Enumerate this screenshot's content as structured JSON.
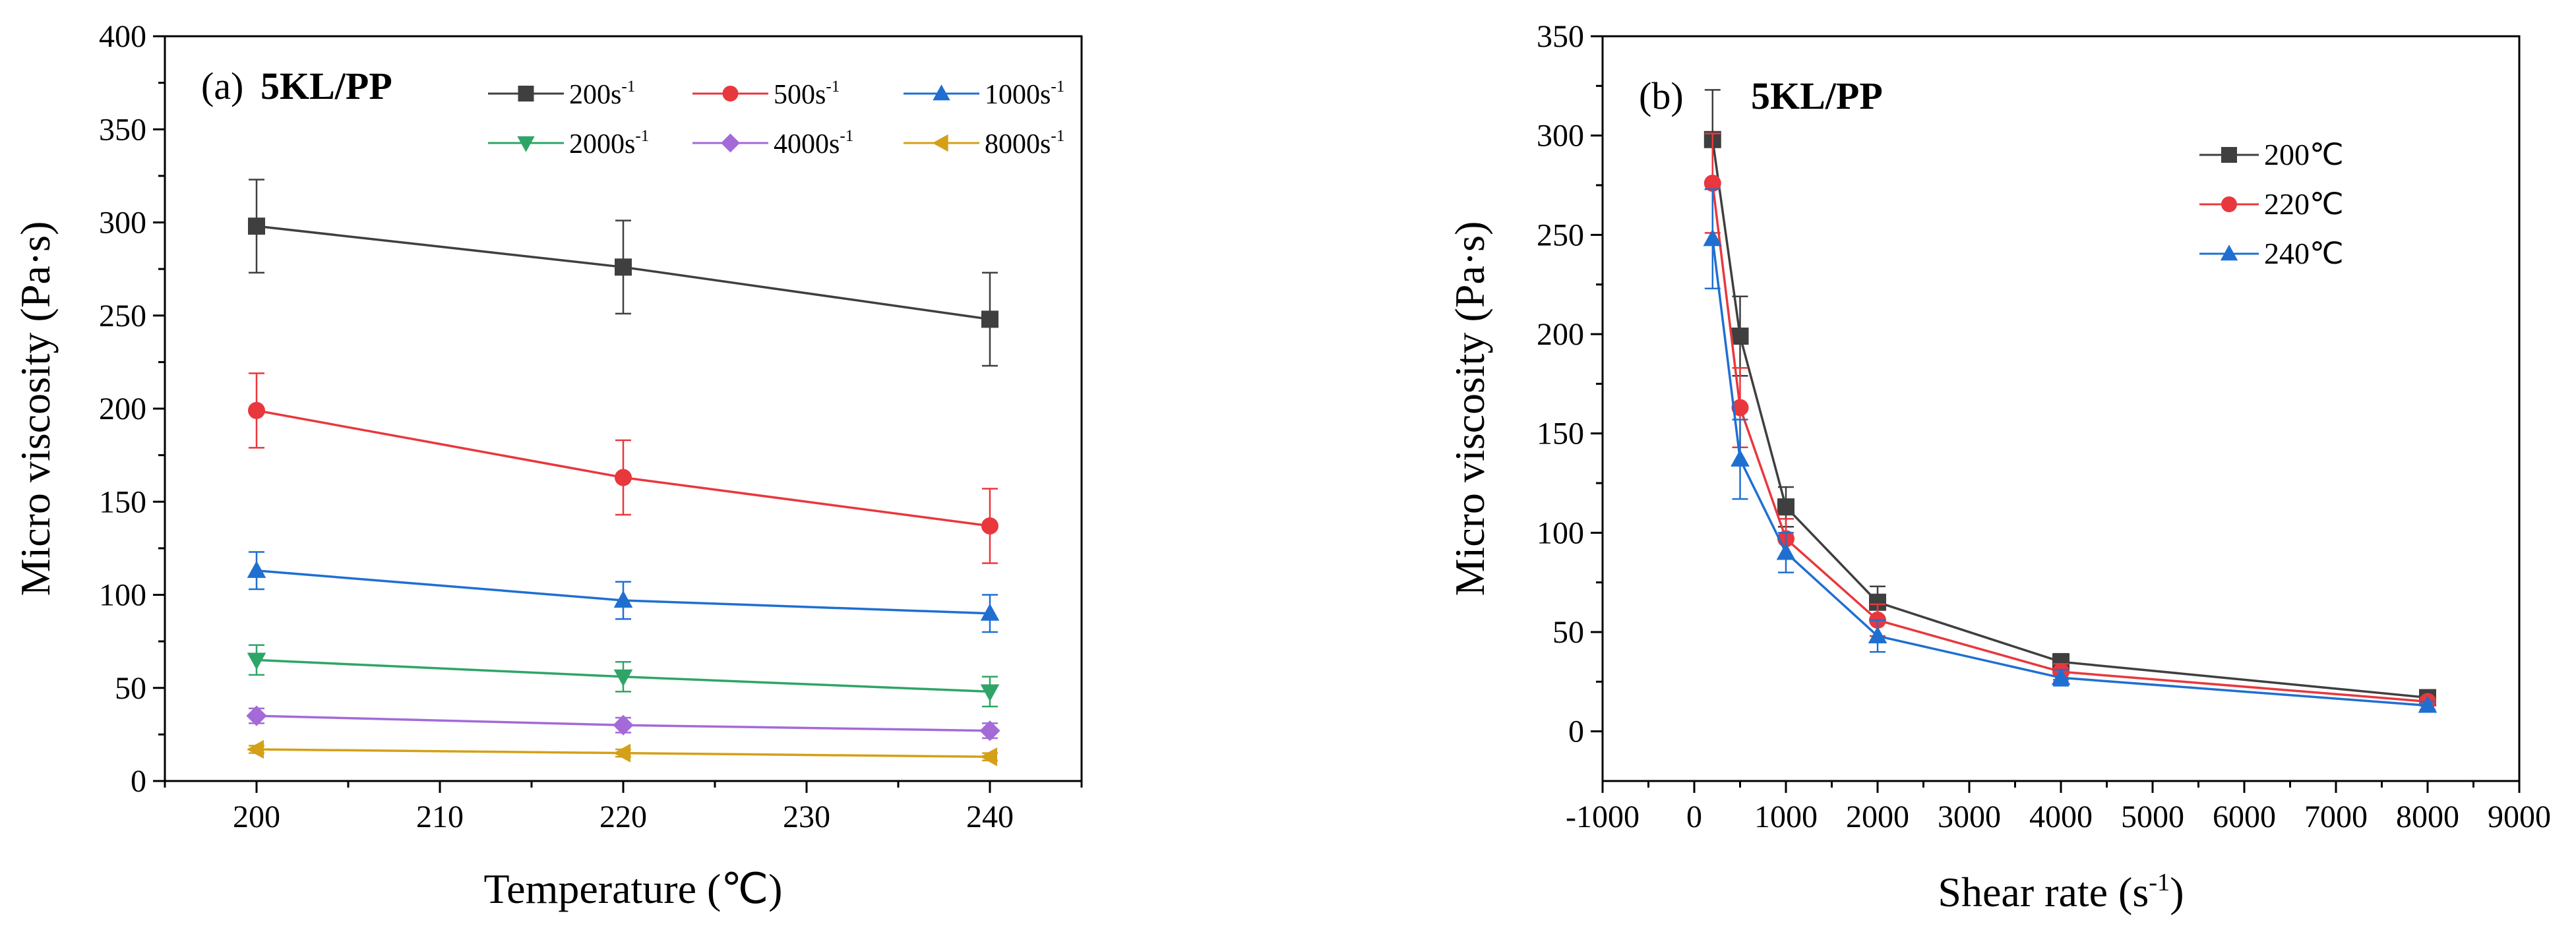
{
  "chart_data": [
    {
      "panel": "(a)",
      "type": "line",
      "title": "5KL/PP",
      "xlabel": "Temperature (℃)",
      "ylabel": "Micro viscosity (Pa·s)",
      "xlim": [
        195,
        245
      ],
      "ylim": [
        0,
        400
      ],
      "xticks": [
        200,
        210,
        220,
        230,
        240
      ],
      "yticks": [
        0,
        50,
        100,
        150,
        200,
        250,
        300,
        350,
        400
      ],
      "x": [
        200,
        220,
        240
      ],
      "series": [
        {
          "name": "200s",
          "sup": "-1",
          "color": "#3f3f3f",
          "marker": "square",
          "values": [
            298,
            276,
            248
          ],
          "errors": [
            25,
            25,
            25
          ]
        },
        {
          "name": "500s",
          "sup": "-1",
          "color": "#e8383d",
          "marker": "circle",
          "values": [
            199,
            163,
            137
          ],
          "errors": [
            20,
            20,
            20
          ]
        },
        {
          "name": "1000s",
          "sup": "-1",
          "color": "#1f6fd1",
          "marker": "triangle-up",
          "values": [
            113,
            97,
            90
          ],
          "errors": [
            10,
            10,
            10
          ]
        },
        {
          "name": "2000s",
          "sup": "-1",
          "color": "#2ea567",
          "marker": "triangle-down",
          "values": [
            65,
            56,
            48
          ],
          "errors": [
            8,
            8,
            8
          ]
        },
        {
          "name": "4000s",
          "sup": "-1",
          "color": "#a46ad8",
          "marker": "diamond",
          "values": [
            35,
            30,
            27
          ],
          "errors": [
            4,
            4,
            4
          ]
        },
        {
          "name": "8000s",
          "sup": "-1",
          "color": "#d4a017",
          "marker": "triangle-left",
          "values": [
            17,
            15,
            13
          ],
          "errors": [
            2,
            2,
            2
          ]
        }
      ]
    },
    {
      "panel": "(b)",
      "type": "line",
      "title": "5KL/PP",
      "xlabel": "Shear rate (s",
      "xlabel_sup": "-1",
      "xlabel_end": ")",
      "ylabel": "Micro viscosity (Pa·s)",
      "xlim": [
        -1000,
        9000
      ],
      "ylim": [
        -25,
        350
      ],
      "xticks": [
        -1000,
        0,
        1000,
        2000,
        3000,
        4000,
        5000,
        6000,
        7000,
        8000,
        9000
      ],
      "yticks": [
        0,
        50,
        100,
        150,
        200,
        250,
        300,
        350
      ],
      "x": [
        200,
        500,
        1000,
        2000,
        4000,
        8000
      ],
      "series": [
        {
          "name": "200℃",
          "color": "#3f3f3f",
          "marker": "square",
          "values": [
            298,
            199,
            113,
            65,
            35,
            17
          ],
          "errors": [
            25,
            20,
            10,
            8,
            4,
            2
          ]
        },
        {
          "name": "220℃",
          "color": "#e8383d",
          "marker": "circle",
          "values": [
            276,
            163,
            97,
            56,
            30,
            15
          ],
          "errors": [
            25,
            20,
            10,
            8,
            4,
            2
          ]
        },
        {
          "name": "240℃",
          "color": "#1f6fd1",
          "marker": "triangle-up",
          "values": [
            248,
            137,
            90,
            48,
            27,
            13
          ],
          "errors": [
            25,
            20,
            10,
            8,
            4,
            2
          ]
        }
      ]
    }
  ]
}
